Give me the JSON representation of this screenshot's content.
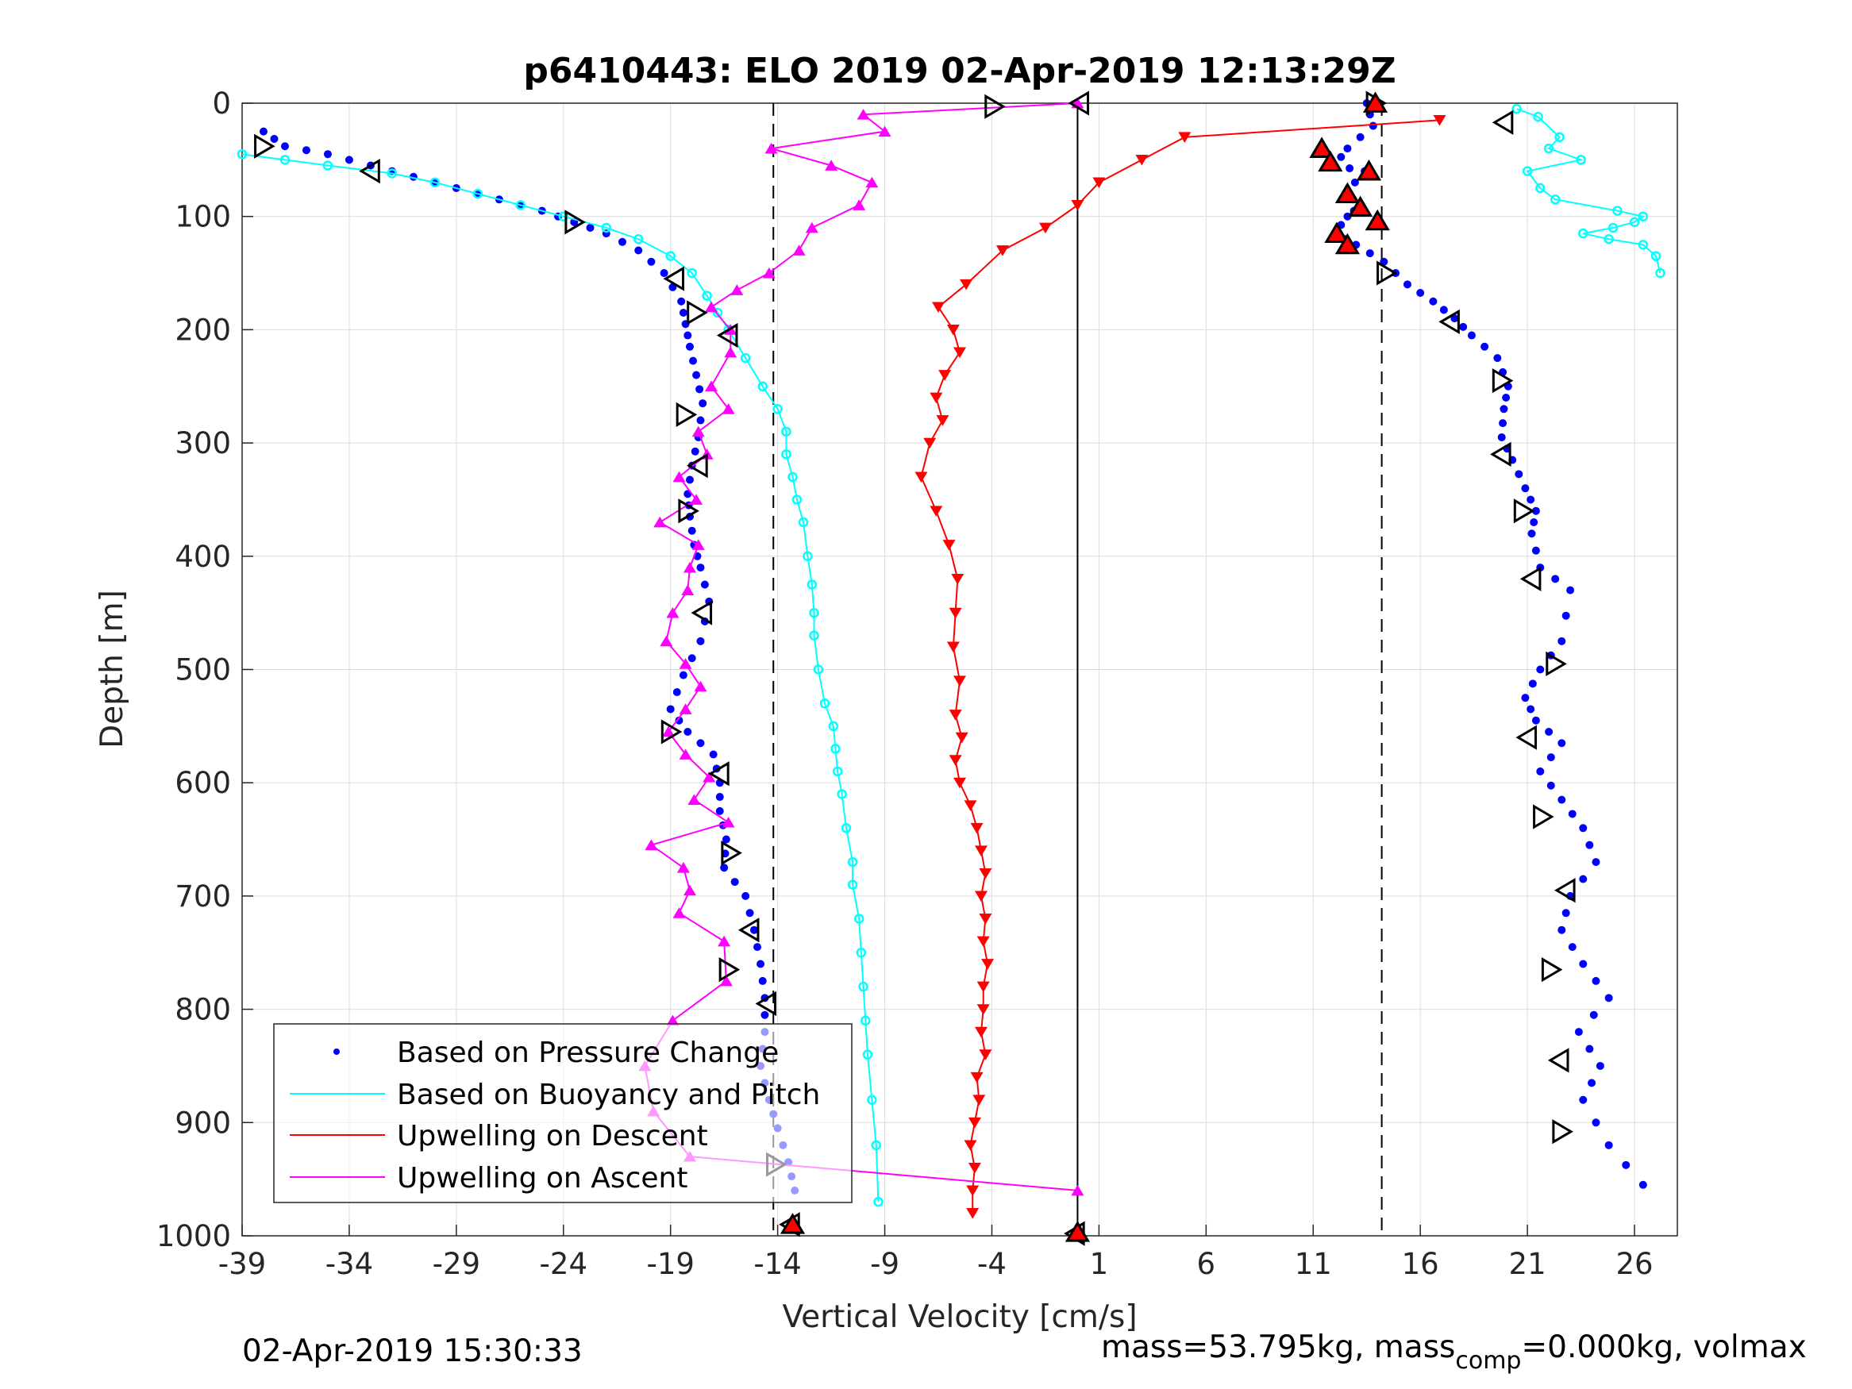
{
  "colors": {
    "pressure": "#0000ff",
    "buoyancy": "#00ffff",
    "upwelling_descent": "#ff0000",
    "upwelling_ascent": "#ff00ff",
    "grid": "#dcdcdc",
    "axes": "#262626"
  },
  "chart_data": {
    "type": "scatter",
    "title": "p6410443: ELO 2019 02-Apr-2019 12:13:29Z",
    "xlabel": "Vertical Velocity [cm/s]",
    "ylabel": "Depth [m]",
    "xlim": [
      -39,
      28
    ],
    "ylim": [
      0,
      1000
    ],
    "y_reversed": true,
    "grid": true,
    "xticks": [
      "-39",
      "-34",
      "-29",
      "-24",
      "-19",
      "-14",
      "-9",
      "-4",
      "1",
      "6",
      "11",
      "16",
      "21",
      "26"
    ],
    "xtick_values": [
      -39,
      -34,
      -29,
      -24,
      -19,
      -14,
      -9,
      -4,
      1,
      6,
      11,
      16,
      21,
      26
    ],
    "yticks": [
      "0",
      "100",
      "200",
      "300",
      "400",
      "500",
      "600",
      "700",
      "800",
      "900",
      "1000"
    ],
    "ytick_values": [
      0,
      100,
      200,
      300,
      400,
      500,
      600,
      700,
      800,
      900,
      1000
    ],
    "reference_lines": [
      {
        "x": 0,
        "style": "solid"
      },
      {
        "x": -14.2,
        "style": "dashed"
      },
      {
        "x": 14.2,
        "style": "dashed"
      }
    ],
    "legend": {
      "location": "bottom-left",
      "entries": [
        "Based on Pressure Change",
        "Based on Buoyancy and Pitch",
        "Upwelling on Descent",
        "Upwelling on Ascent"
      ]
    },
    "series": [
      {
        "name": "Based on Pressure Change (descent)",
        "marker": "dot",
        "color": "pressure",
        "x": [
          -38,
          -37,
          -35,
          -33,
          -31,
          -29,
          -27,
          -25,
          -23.5,
          -22,
          -20.5,
          -19.3,
          -18.5,
          -18.3,
          -18.1,
          -17.8,
          -17.5,
          -17.7,
          -18,
          -18.2,
          -18.1,
          -17.9,
          -17.6,
          -17.2,
          -17.6,
          -18.4,
          -19,
          -18.2,
          -17,
          -16.7,
          -16.7,
          -16.4,
          -16.5,
          -15.5,
          -15.1,
          -14.8,
          -14.6,
          -14.6,
          -14.8,
          -14.4,
          -14,
          -13.5,
          -13.2
        ],
        "y": [
          25,
          38,
          45,
          55,
          65,
          75,
          85,
          95,
          105,
          115,
          130,
          150,
          175,
          195,
          215,
          240,
          265,
          295,
          320,
          345,
          365,
          390,
          410,
          440,
          475,
          505,
          535,
          555,
          575,
          600,
          625,
          650,
          675,
          700,
          730,
          760,
          790,
          820,
          850,
          880,
          905,
          935,
          960
        ]
      },
      {
        "name": "Based on Pressure Change (ascent)",
        "marker": "dot",
        "color": "pressure",
        "x": [
          13.5,
          13.8,
          12.6,
          12,
          13.4,
          12.5,
          13.2,
          12.6,
          12,
          13,
          14.3,
          15.4,
          16.6,
          17.6,
          18.4,
          19.6,
          20.1,
          19.9,
          19.8,
          20.3,
          20.9,
          21.4,
          21.2,
          21.6,
          23,
          22.6,
          21.6,
          20.9,
          21.4,
          22.6,
          21.6,
          22.6,
          23.6,
          24.2,
          23,
          22.6,
          23.6,
          24.8,
          23.4,
          24.4,
          23.6,
          24.8,
          26.4
        ],
        "y": [
          0,
          20,
          40,
          55,
          60,
          80,
          90,
          100,
          115,
          125,
          140,
          160,
          175,
          190,
          205,
          225,
          250,
          270,
          295,
          315,
          340,
          360,
          380,
          410,
          430,
          475,
          500,
          525,
          545,
          565,
          590,
          615,
          640,
          670,
          700,
          730,
          760,
          790,
          820,
          850,
          880,
          920,
          955
        ]
      },
      {
        "name": "Based on Buoyancy and Pitch (descent)",
        "marker": "open-circle-line",
        "color": "buoyancy",
        "x": [
          -39,
          -37,
          -35,
          -32,
          -30,
          -28,
          -26,
          -24,
          -22,
          -20.5,
          -19,
          -18,
          -17.3,
          -16.8,
          -16.3,
          -15.5,
          -14.7,
          -14,
          -13.6,
          -13.6,
          -13.3,
          -13.1,
          -12.8,
          -12.6,
          -12.4,
          -12.3,
          -12.3,
          -12.1,
          -11.8,
          -11.4,
          -11.3,
          -11.2,
          -11,
          -10.8,
          -10.5,
          -10.5,
          -10.2,
          -10.1,
          -10,
          -9.9,
          -9.8,
          -9.6,
          -9.4,
          -9.3
        ],
        "y": [
          45,
          50,
          55,
          62,
          70,
          80,
          90,
          100,
          110,
          120,
          135,
          150,
          170,
          185,
          200,
          225,
          250,
          270,
          290,
          310,
          330,
          350,
          370,
          400,
          425,
          450,
          470,
          500,
          530,
          550,
          570,
          590,
          610,
          640,
          670,
          690,
          720,
          750,
          780,
          810,
          840,
          880,
          920,
          970
        ]
      },
      {
        "name": "Based on Buoyancy and Pitch (ascent)",
        "marker": "open-circle-line",
        "color": "buoyancy",
        "x": [
          20.5,
          21.5,
          22.5,
          22,
          23.5,
          21,
          21.6,
          22.3,
          25.2,
          26.4,
          26,
          25,
          23.6,
          24.8,
          26.4,
          27,
          27.2
        ],
        "y": [
          5,
          12,
          30,
          40,
          50,
          60,
          75,
          85,
          95,
          100,
          105,
          110,
          115,
          120,
          125,
          135,
          150
        ]
      },
      {
        "name": "Upwelling on Descent",
        "marker": "down-triangle-line",
        "color": "upwelling_descent",
        "x": [
          16.9,
          5,
          3,
          1,
          0,
          -1.5,
          -3.5,
          -5.2,
          -6.5,
          -5.8,
          -5.5,
          -6.2,
          -6.6,
          -6.3,
          -6.9,
          -7.3,
          -6.6,
          -6,
          -5.6,
          -5.7,
          -5.8,
          -5.5,
          -5.7,
          -5.4,
          -5.7,
          -5.5,
          -5,
          -4.7,
          -4.5,
          -4.3,
          -4.5,
          -4.3,
          -4.4,
          -4.2,
          -4.4,
          -4.4,
          -4.5,
          -4.3,
          -4.7,
          -4.6,
          -4.8,
          -5,
          -4.8,
          -4.9,
          -4.9
        ],
        "y": [
          15,
          30,
          50,
          70,
          90,
          110,
          130,
          160,
          180,
          200,
          220,
          240,
          260,
          280,
          300,
          330,
          360,
          390,
          420,
          450,
          480,
          510,
          540,
          560,
          580,
          600,
          620,
          640,
          660,
          680,
          700,
          720,
          740,
          760,
          780,
          800,
          820,
          840,
          860,
          880,
          900,
          920,
          940,
          960,
          980
        ]
      },
      {
        "name": "Upwelling on Ascent",
        "marker": "up-triangle-line",
        "color": "upwelling_ascent",
        "x": [
          0,
          -10,
          -9,
          -14.3,
          -11.5,
          -9.6,
          -10.2,
          -12.4,
          -13,
          -14.4,
          -15.9,
          -17.1,
          -16.2,
          -16.2,
          -17.1,
          -16.3,
          -17.7,
          -17.3,
          -18.6,
          -17.8,
          -19.5,
          -17.7,
          -18.1,
          -18.2,
          -18.9,
          -19.2,
          -18.3,
          -17.6,
          -18.3,
          -19.1,
          -18.3,
          -17.2,
          -17.9,
          -16.3,
          -19.9,
          -18.4,
          -18.1,
          -18.6,
          -16.5,
          -16.4,
          -18.9,
          -20.2,
          -19.8,
          -18.1,
          0
        ],
        "y": [
          0,
          10,
          25,
          40,
          55,
          70,
          90,
          110,
          130,
          150,
          165,
          180,
          200,
          220,
          250,
          270,
          290,
          310,
          330,
          350,
          370,
          390,
          410,
          430,
          450,
          475,
          495,
          515,
          535,
          555,
          575,
          595,
          615,
          635,
          655,
          675,
          695,
          715,
          740,
          775,
          810,
          850,
          890,
          930,
          960
        ]
      }
    ],
    "triangle_markers": [
      {
        "x": -38,
        "y": 38
      },
      {
        "x": -33,
        "y": 60
      },
      {
        "x": -23.5,
        "y": 105
      },
      {
        "x": -18.8,
        "y": 155
      },
      {
        "x": -17.8,
        "y": 185
      },
      {
        "x": -16.3,
        "y": 205
      },
      {
        "x": -18.3,
        "y": 275
      },
      {
        "x": -17.7,
        "y": 320
      },
      {
        "x": -18.2,
        "y": 360
      },
      {
        "x": -17.5,
        "y": 450
      },
      {
        "x": -19,
        "y": 555
      },
      {
        "x": -16.7,
        "y": 592
      },
      {
        "x": -16.2,
        "y": 662
      },
      {
        "x": -15.3,
        "y": 730
      },
      {
        "x": -16.3,
        "y": 765
      },
      {
        "x": -14.5,
        "y": 795
      },
      {
        "x": -14.1,
        "y": 937
      },
      {
        "x": -13.4,
        "y": 990
      },
      {
        "x": -3.9,
        "y": 3
      },
      {
        "x": 0.1,
        "y": 0
      },
      {
        "x": 13.9,
        "y": 0
      },
      {
        "x": 19.9,
        "y": 17
      },
      {
        "x": 14.4,
        "y": 150
      },
      {
        "x": 17.4,
        "y": 193
      },
      {
        "x": 19.8,
        "y": 245
      },
      {
        "x": 19.8,
        "y": 310
      },
      {
        "x": 20.8,
        "y": 360
      },
      {
        "x": 21.2,
        "y": 420
      },
      {
        "x": 22.3,
        "y": 495
      },
      {
        "x": 21,
        "y": 560
      },
      {
        "x": 21.7,
        "y": 630
      },
      {
        "x": 22.8,
        "y": 695
      },
      {
        "x": 22.1,
        "y": 765
      },
      {
        "x": 22.5,
        "y": 845
      },
      {
        "x": 22.6,
        "y": 908
      },
      {
        "x": -0.1,
        "y": 998
      }
    ],
    "filled_triangle_markers": [
      {
        "x": 11.4,
        "y": 40
      },
      {
        "x": 11.8,
        "y": 52
      },
      {
        "x": 13.6,
        "y": 60
      },
      {
        "x": 12.6,
        "y": 80
      },
      {
        "x": 13.2,
        "y": 92
      },
      {
        "x": 14,
        "y": 104
      },
      {
        "x": 12.1,
        "y": 115
      },
      {
        "x": 12.6,
        "y": 125
      },
      {
        "x": 13.9,
        "y": 0
      },
      {
        "x": -13.3,
        "y": 990
      },
      {
        "x": 0,
        "y": 997
      }
    ]
  },
  "footer": {
    "timestamp": "02-Apr-2019 15:30:33",
    "mass_prefix": "mass=53.795kg, mass",
    "mass_sub": "comp",
    "mass_suffix": "=0.000kg, volmax"
  }
}
